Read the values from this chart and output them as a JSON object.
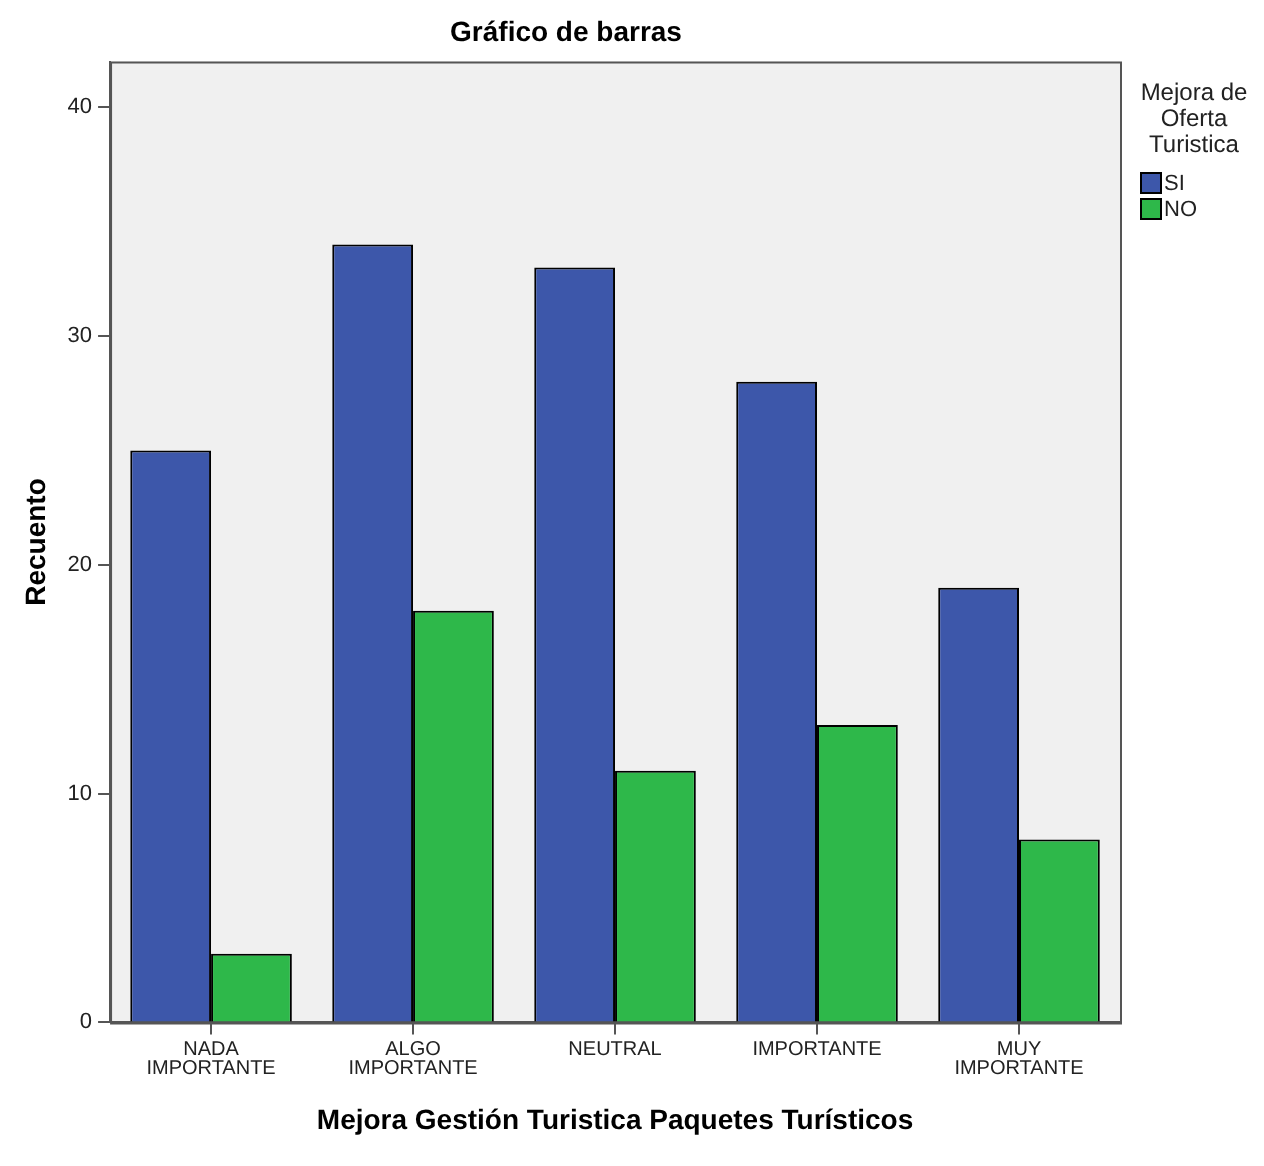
{
  "chart_data": {
    "type": "bar",
    "title": "Gráfico de barras",
    "xlabel": "Mejora Gestión Turistica Paquetes Turísticos",
    "ylabel": "Recuento",
    "legend_title": "Mejora de Oferta Turistica",
    "categories": [
      "NADA IMPORTANTE",
      "ALGO IMPORTANTE",
      "NEUTRAL",
      "IMPORTANTE",
      "MUY IMPORTANTE"
    ],
    "series": [
      {
        "name": "SI",
        "color": "#3d57aa",
        "values": [
          25,
          34,
          33,
          28,
          19
        ]
      },
      {
        "name": "NO",
        "color": "#2eb84a",
        "values": [
          3,
          18,
          11,
          13,
          8
        ]
      }
    ],
    "ylim": [
      0,
      42
    ],
    "yticks": [
      0,
      10,
      20,
      30,
      40
    ],
    "grid": false,
    "legend": "top right"
  }
}
